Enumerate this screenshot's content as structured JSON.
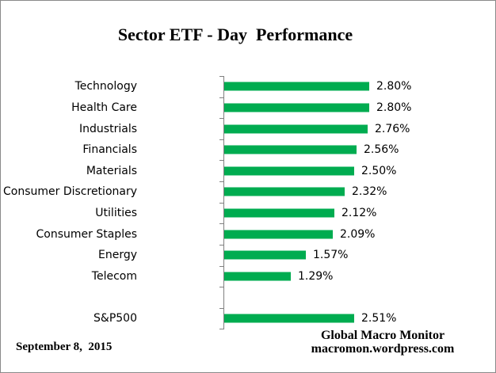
{
  "chart_data": {
    "type": "bar",
    "orientation": "horizontal",
    "title": "Sector ETF - Day  Performance",
    "categories": [
      "Technology",
      "Health Care",
      "Industrials",
      "Financials",
      "Materials",
      "Consumer Discretionary",
      "Utilities",
      "Consumer Staples",
      "Energy",
      "Telecom",
      "",
      "S&P500"
    ],
    "values": [
      2.8,
      2.8,
      2.76,
      2.56,
      2.5,
      2.32,
      2.12,
      2.09,
      1.57,
      1.29,
      null,
      2.51
    ],
    "value_labels": [
      "2.80%",
      "2.80%",
      "2.76%",
      "2.56%",
      "2.50%",
      "2.32%",
      "2.12%",
      "2.09%",
      "1.57%",
      "1.29%",
      "",
      "2.51%"
    ],
    "xlabel": "",
    "ylabel": "",
    "grid": "off",
    "legend": "none",
    "bar_color": "#00AC50",
    "axis_color": "#808080"
  },
  "footer": {
    "date": "September 8,  2015",
    "attribution_line1": "Global Macro Monitor",
    "attribution_line2": "macromon.wordpress.com"
  }
}
